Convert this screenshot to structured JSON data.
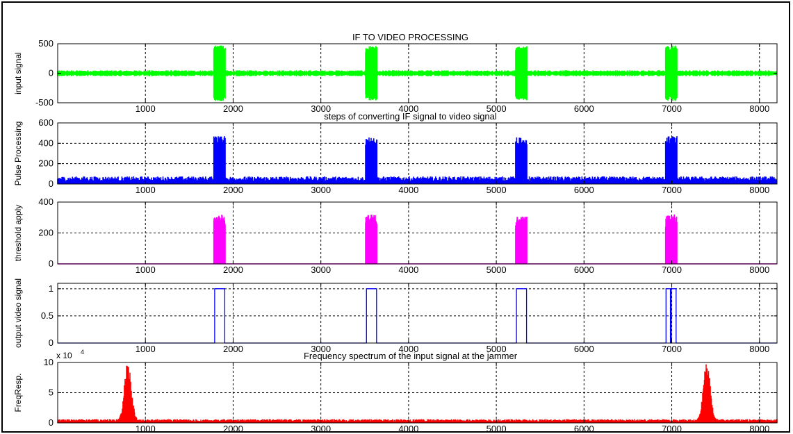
{
  "figure": {
    "background": "#ffffff",
    "frame_color": "#000000"
  },
  "chart_data": [
    {
      "type": "line",
      "title": "IF TO VIDEO PROCESSING",
      "ylabel": "input signal",
      "xlim": [
        0,
        8200
      ],
      "ylim": [
        -500,
        500
      ],
      "xticks": [
        1000,
        2000,
        3000,
        4000,
        5000,
        6000,
        7000,
        8000
      ],
      "yticks": [
        -500,
        0,
        500
      ],
      "grid": true,
      "color": "#00ff00",
      "noise_level": 50,
      "bursts": [
        {
          "start": 1780,
          "end": 1910,
          "amplitude": 470
        },
        {
          "start": 3510,
          "end": 3640,
          "amplitude": 460
        },
        {
          "start": 5220,
          "end": 5350,
          "amplitude": 460
        },
        {
          "start": 6930,
          "end": 7060,
          "amplitude": 470
        }
      ]
    },
    {
      "type": "line",
      "title": "steps of converting IF signal to video signal",
      "ylabel": "Pulse Processing",
      "xlim": [
        0,
        8200
      ],
      "ylim": [
        0,
        600
      ],
      "xticks": [
        1000,
        2000,
        3000,
        4000,
        5000,
        6000,
        7000,
        8000
      ],
      "yticks": [
        0,
        200,
        400,
        600
      ],
      "grid": true,
      "color": "#0000ff",
      "noise_level": 75,
      "bursts": [
        {
          "start": 1780,
          "end": 1910,
          "amplitude": 470
        },
        {
          "start": 3510,
          "end": 3640,
          "amplitude": 460
        },
        {
          "start": 5220,
          "end": 5350,
          "amplitude": 460
        },
        {
          "start": 6930,
          "end": 7060,
          "amplitude": 470
        }
      ]
    },
    {
      "type": "line",
      "title": "",
      "ylabel": "threshold apply",
      "xlim": [
        0,
        8200
      ],
      "ylim": [
        0,
        400
      ],
      "xticks": [
        1000,
        2000,
        3000,
        4000,
        5000,
        6000,
        7000,
        8000
      ],
      "yticks": [
        0,
        200,
        400
      ],
      "grid": true,
      "color": "#ff00ff",
      "noise_level": 0,
      "bursts": [
        {
          "start": 1780,
          "end": 1910,
          "amplitude": 320
        },
        {
          "start": 3510,
          "end": 3640,
          "amplitude": 320
        },
        {
          "start": 5220,
          "end": 5350,
          "amplitude": 310
        },
        {
          "start": 6930,
          "end": 7060,
          "amplitude": 320
        }
      ]
    },
    {
      "type": "line",
      "title": "",
      "ylabel": "output video signal",
      "xlim": [
        0,
        8200
      ],
      "ylim": [
        0,
        1.1
      ],
      "xticks": [
        1000,
        2000,
        3000,
        4000,
        5000,
        6000,
        7000,
        8000
      ],
      "yticks": [
        0,
        0.5,
        1
      ],
      "grid": true,
      "color": "#0000ff",
      "pulses": [
        {
          "start": 1790,
          "end": 1905,
          "level": 1
        },
        {
          "start": 3520,
          "end": 3635,
          "level": 1
        },
        {
          "start": 5230,
          "end": 5345,
          "level": 1
        },
        {
          "start": 6935,
          "end": 6985,
          "level": 1
        },
        {
          "start": 6995,
          "end": 7050,
          "level": 1
        }
      ]
    },
    {
      "type": "line",
      "title": "Frequency spectrum of the input signal at the jammer",
      "ylabel": "FreqResp.",
      "xlim": [
        0,
        8200
      ],
      "ylim": [
        0,
        10
      ],
      "y_multiplier": "x 10",
      "y_multiplier_exp": "4",
      "xticks": [
        1000,
        2000,
        3000,
        4000,
        5000,
        6000,
        7000,
        8000
      ],
      "yticks": [
        0,
        5,
        10
      ],
      "grid": true,
      "color": "#ff0000",
      "noise_level": 0.6,
      "peaks": [
        {
          "center": 800,
          "height": 10,
          "width": 55
        },
        {
          "center": 7400,
          "height": 10,
          "width": 55
        }
      ]
    }
  ]
}
